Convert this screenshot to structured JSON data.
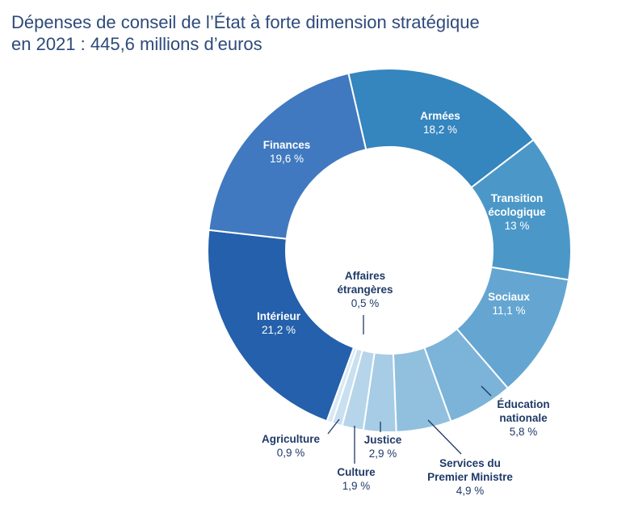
{
  "title_line1": "Dépenses de conseil de l’État à forte dimension stratégique",
  "title_line2": "en 2021 : 445,6 millions d’euros",
  "chart_data": {
    "type": "pie",
    "variant": "donut",
    "unit": "%",
    "total_label": "445,6 millions d’euros",
    "slices": [
      {
        "name": "Armées",
        "value": 18.2,
        "value_label": "18,2 %",
        "color": "#3585be"
      },
      {
        "name": "Transition écologique",
        "value": 13.0,
        "value_label": "13 %",
        "color": "#4b98c8"
      },
      {
        "name": "Sociaux",
        "value": 11.1,
        "value_label": "11,1 %",
        "color": "#64a6d1"
      },
      {
        "name": "Éducation nationale",
        "value": 5.8,
        "value_label": "5,8 %",
        "color": "#7cb3d9"
      },
      {
        "name": "Services du Premier Ministre",
        "value": 4.9,
        "value_label": "4,9 %",
        "color": "#91c0df"
      },
      {
        "name": "Justice",
        "value": 2.9,
        "value_label": "2,9 %",
        "color": "#a6cce6"
      },
      {
        "name": "Culture",
        "value": 1.9,
        "value_label": "1,9 %",
        "color": "#b6d5ea"
      },
      {
        "name": "Agriculture",
        "value": 0.9,
        "value_label": "0,9 %",
        "color": "#c8e0f0"
      },
      {
        "name": "Affaires étrangères",
        "value": 0.5,
        "value_label": "0,5 %",
        "color": "#d8e9f5"
      },
      {
        "name": "Intérieur",
        "value": 21.2,
        "value_label": "21,2 %",
        "color": "#2460ab"
      },
      {
        "name": "Finances",
        "value": 19.6,
        "value_label": "19,6 %",
        "color": "#4079bf"
      }
    ]
  }
}
